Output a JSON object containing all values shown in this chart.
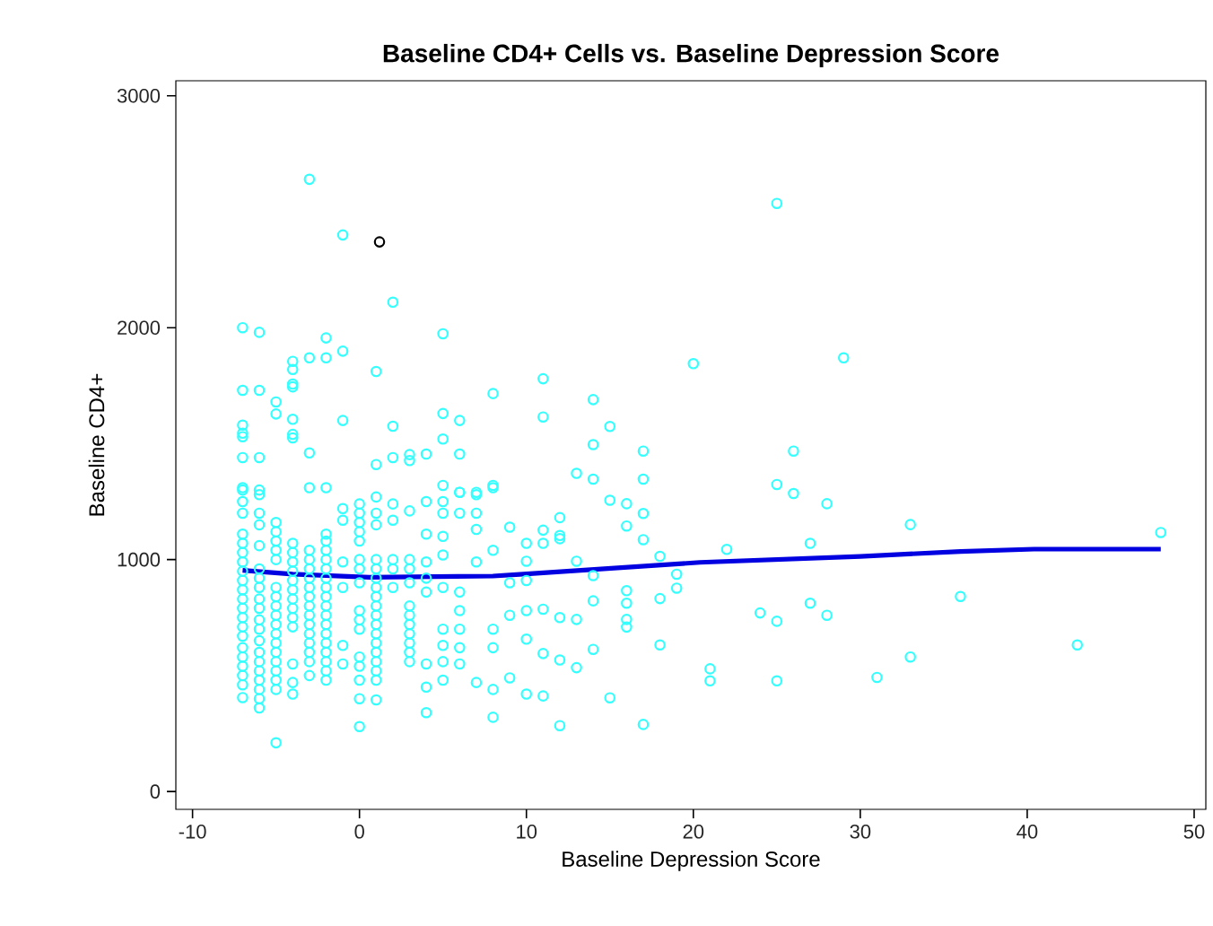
{
  "chart_data": {
    "type": "scatter",
    "title": "Baseline CD4+ Cells vs. Baseline Depression Score",
    "xlabel": "Baseline Depression Score",
    "ylabel": "Baseline CD4+",
    "xlim": [
      -11,
      50.7
    ],
    "ylim": [
      -77,
      3065
    ],
    "xticks": [
      -10,
      0,
      10,
      20,
      30,
      40,
      50
    ],
    "yticks": [
      0,
      1000,
      2000,
      3000
    ],
    "grid": false,
    "marker": "circle",
    "series": [
      {
        "color": "#33ffff",
        "x": [
          -3,
          -1,
          2,
          -7,
          -6,
          -2,
          5,
          -4,
          -4,
          -3,
          -2,
          -1,
          1,
          -4,
          -4,
          -7,
          -6,
          -5,
          -5,
          8,
          -4,
          -1,
          2,
          5,
          6,
          -7,
          -7,
          -7,
          -4,
          -4,
          -6,
          -7,
          -3,
          1,
          2,
          3,
          3,
          4,
          5,
          6,
          -7,
          -6,
          -3,
          -2,
          5,
          6,
          7,
          8,
          -7,
          -7,
          -7,
          -7,
          -7,
          -7,
          -7,
          -7,
          -7,
          -7,
          -7,
          -7,
          -7,
          -7,
          -7,
          -7,
          -7,
          -7,
          -7,
          -7,
          -7,
          -6,
          -6,
          -6,
          -6,
          -6,
          -6,
          -6,
          -6,
          -6,
          -6,
          -6,
          -6,
          -6,
          -6,
          -6,
          -6,
          -6,
          -6,
          -6,
          -5,
          -5,
          -5,
          -5,
          -5,
          -5,
          -5,
          -5,
          -5,
          -5,
          -5,
          -5,
          -5,
          -5,
          -5,
          -5,
          -5,
          -5,
          -4,
          -4,
          -4,
          -4,
          -4,
          -4,
          -4,
          -4,
          -4,
          -4,
          -4,
          -4,
          -4,
          -3,
          -3,
          -3,
          -3,
          -3,
          -3,
          -3,
          -3,
          -3,
          -3,
          -3,
          -3,
          -3,
          -3,
          -2,
          -2,
          -2,
          -2,
          -2,
          -2,
          -2,
          -2,
          -2,
          -2,
          -2,
          -2,
          -2,
          -2,
          -2,
          -2,
          -2,
          -1,
          -1,
          -1,
          -1,
          -1,
          -1,
          0,
          0,
          0,
          0,
          0,
          0,
          0,
          0,
          0,
          0,
          0,
          0,
          0,
          0,
          0,
          0,
          1,
          1,
          1,
          1,
          1,
          1,
          1,
          1,
          1,
          1,
          1,
          1,
          1,
          1,
          1,
          1,
          1,
          1,
          2,
          2,
          2,
          2,
          2,
          3,
          3,
          3,
          3,
          3,
          3,
          3,
          3,
          3,
          3,
          3,
          4,
          4,
          4,
          4,
          4,
          4,
          4,
          4,
          5,
          5,
          5,
          5,
          5,
          5,
          5,
          5,
          5,
          6,
          6,
          6,
          6,
          6,
          6,
          6,
          7,
          7,
          7,
          7,
          7,
          8,
          8,
          8,
          8,
          8,
          8,
          9,
          9,
          9,
          9,
          10,
          10,
          10,
          10,
          10,
          10,
          11,
          11,
          11,
          11,
          11,
          11,
          11,
          12,
          12,
          12,
          12,
          12,
          12,
          13,
          13,
          13,
          13,
          14,
          14,
          14,
          14,
          14,
          14,
          15,
          15,
          15,
          16,
          16,
          16,
          16,
          16,
          16,
          17,
          17,
          17,
          17,
          17,
          18,
          18,
          18,
          19,
          19,
          20,
          21,
          21,
          22,
          24,
          25,
          25,
          25,
          25,
          26,
          26,
          27,
          27,
          28,
          28,
          29,
          31,
          33,
          33,
          36,
          43,
          48
        ],
        "values": [
          2640,
          2400,
          2110,
          2000,
          1980,
          1956,
          1974,
          1855,
          1820,
          1870,
          1870,
          1899,
          1811,
          1757,
          1745,
          1730,
          1730,
          1680,
          1628,
          1716,
          1605,
          1600,
          1575,
          1630,
          1600,
          1580,
          1545,
          1530,
          1540,
          1525,
          1440,
          1440,
          1460,
          1410,
          1440,
          1453,
          1427,
          1455,
          1520,
          1455,
          1310,
          1300,
          1310,
          1310,
          1320,
          1290,
          1290,
          1310,
          1300,
          1250,
          1200,
          1110,
          1070,
          1030,
          990,
          950,
          910,
          870,
          830,
          790,
          750,
          710,
          670,
          620,
          580,
          540,
          500,
          460,
          405,
          1280,
          1200,
          1150,
          1060,
          960,
          920,
          880,
          830,
          790,
          740,
          700,
          650,
          600,
          560,
          520,
          480,
          440,
          400,
          360,
          1160,
          1120,
          1080,
          1040,
          1000,
          880,
          840,
          800,
          760,
          720,
          680,
          640,
          600,
          560,
          520,
          480,
          440,
          210,
          1070,
          1030,
          990,
          950,
          910,
          870,
          830,
          790,
          750,
          710,
          550,
          470,
          420,
          1040,
          1000,
          960,
          920,
          880,
          840,
          800,
          760,
          720,
          680,
          640,
          600,
          560,
          500,
          1110,
          1080,
          1040,
          1000,
          960,
          920,
          880,
          840,
          800,
          760,
          720,
          680,
          640,
          600,
          560,
          520,
          480,
          1220,
          1170,
          990,
          880,
          630,
          550,
          1240,
          1200,
          1160,
          1120,
          1080,
          1000,
          960,
          900,
          780,
          740,
          700,
          580,
          540,
          480,
          400,
          280,
          1270,
          1200,
          1150,
          1000,
          960,
          920,
          880,
          840,
          800,
          760,
          720,
          680,
          640,
          600,
          560,
          520,
          480,
          395,
          1240,
          1170,
          1000,
          960,
          880,
          1210,
          1000,
          960,
          900,
          800,
          760,
          720,
          680,
          640,
          600,
          560,
          1250,
          1110,
          990,
          920,
          860,
          550,
          450,
          340,
          1250,
          1200,
          1100,
          1020,
          880,
          700,
          630,
          560,
          480,
          1290,
          1200,
          860,
          780,
          700,
          620,
          550,
          1280,
          1200,
          1130,
          990,
          470,
          1320,
          1040,
          700,
          620,
          440,
          320,
          1140,
          900,
          760,
          490,
          1070,
          993,
          910,
          780,
          657,
          420,
          1780,
          1615,
          1127,
          1070,
          786,
          595,
          412,
          1181,
          1104,
          1090,
          750,
          567,
          284,
          1372,
          993,
          742,
          534,
          1690,
          1496,
          1347,
          931,
          822,
          613,
          1574,
          1256,
          404,
          1241,
          1145,
          866,
          812,
          742,
          709,
          1468,
          1347,
          1199,
          1086,
          289,
          1014,
          832,
          632,
          937,
          877,
          1845,
          529,
          477,
          1044,
          770,
          2536,
          1324,
          734,
          477,
          1468,
          1285,
          1070,
          812,
          1241,
          760,
          1870,
          492,
          1151,
          580,
          841,
          632,
          1117
        ]
      },
      {
        "color": "#000000",
        "x": [
          1.2
        ],
        "values": [
          2370
        ]
      },
      {
        "type": "line",
        "marker": "none",
        "color": "#0000e0",
        "x": [
          -7,
          -4,
          0.6,
          8,
          9.6,
          20.4,
          30,
          36,
          40.4,
          48
        ],
        "values": [
          954,
          937,
          924,
          929,
          936,
          988,
          1014,
          1035,
          1045,
          1045
        ]
      }
    ]
  }
}
